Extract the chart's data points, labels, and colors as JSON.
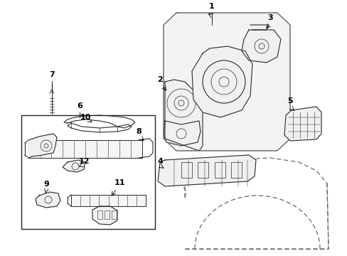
{
  "bg_color": "#ffffff",
  "line_color": "#2a2a2a",
  "gray_color": "#666666",
  "label_color": "#000000",
  "figsize": [
    4.89,
    3.6
  ],
  "dpi": 100,
  "fig_w": 489,
  "fig_h": 360,
  "panel_color": "#e8e8e8",
  "panel_edge": "#555555"
}
